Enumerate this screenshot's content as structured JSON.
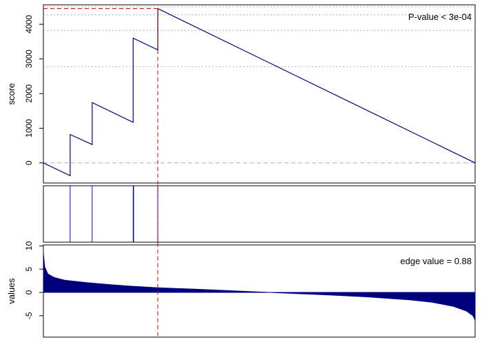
{
  "chart_data": [
    {
      "type": "line",
      "panel": "running-score",
      "ylabel": "score",
      "ylim": [
        -580,
        4560
      ],
      "xlim": [
        0,
        1000
      ],
      "y_ticks": [
        0,
        1000,
        2000,
        3000,
        4000
      ],
      "annotation": "P-value < 3e-04",
      "series": [
        {
          "color": "#00007f",
          "x": [
            0,
            62,
            62,
            113,
            113,
            208,
            208,
            265,
            265,
            1000
          ],
          "y": [
            0,
            -370,
            820,
            530,
            1740,
            1170,
            3600,
            3260,
            4450,
            0
          ]
        }
      ],
      "reference_lines": {
        "baseline": 0,
        "peak_score": 4450,
        "peak_x": 265,
        "dotted_y": [
          4500,
          4270,
          3820,
          2780
        ]
      },
      "grid": false
    },
    {
      "type": "rug",
      "panel": "hit-positions",
      "hits_x": [
        62,
        113,
        208,
        209,
        265
      ],
      "color": "#0000ff"
    },
    {
      "type": "area",
      "panel": "ranked-values",
      "ylabel": "values",
      "ylim": [
        -9.6,
        10.2
      ],
      "xlim": [
        0,
        1000
      ],
      "y_ticks": [
        -5,
        0,
        5,
        10
      ],
      "annotation": "edge value =  0.88",
      "curve_x": [
        0,
        3,
        10,
        25,
        50,
        100,
        150,
        200,
        265,
        350,
        450,
        550,
        650,
        750,
        850,
        900,
        950,
        980,
        995,
        1000
      ],
      "curve_y": [
        8.5,
        5.5,
        4.0,
        3.2,
        2.6,
        2.1,
        1.7,
        1.35,
        1.0,
        0.7,
        0.3,
        -0.1,
        -0.5,
        -0.95,
        -1.6,
        -2.1,
        -3.0,
        -4.0,
        -5.0,
        -6.0
      ],
      "color": "#00007f"
    }
  ]
}
